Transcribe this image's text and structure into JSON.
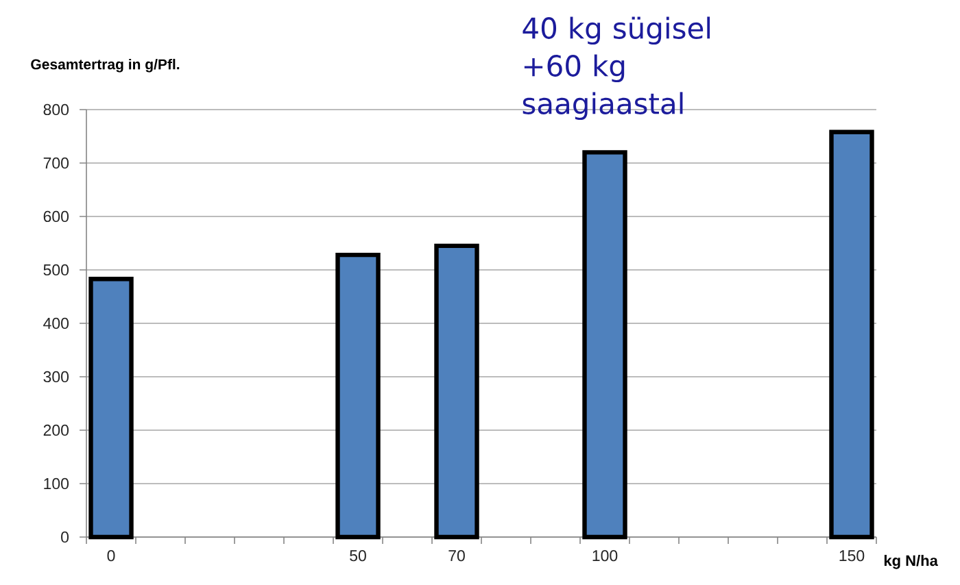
{
  "chart_data": {
    "type": "bar",
    "ylabel": "Gesamtertrag in g/Pfl.",
    "xlabel": "kg N/ha",
    "annotations": [
      "40 kg sügisel +60 kg saagiaastal"
    ],
    "categories": [
      "0",
      null,
      null,
      null,
      null,
      "50",
      null,
      "70",
      null,
      null,
      "100",
      null,
      null,
      null,
      null,
      "150"
    ],
    "values": [
      483,
      null,
      null,
      null,
      null,
      528,
      null,
      545,
      null,
      null,
      720,
      null,
      null,
      null,
      null,
      758
    ],
    "color": "#4f81bd",
    "ylim": [
      0,
      800
    ],
    "yticks": [
      0,
      100,
      200,
      300,
      400,
      500,
      600,
      700,
      800
    ],
    "grid": "y"
  }
}
